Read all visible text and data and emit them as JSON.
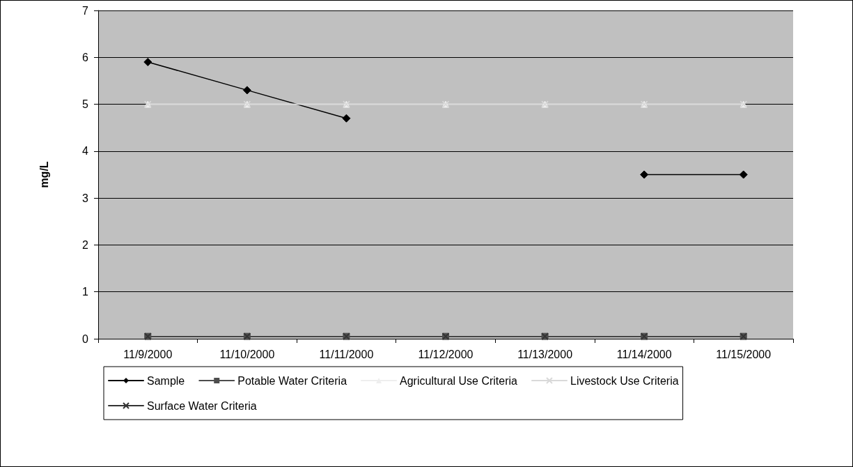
{
  "chart_data": {
    "type": "line",
    "ylabel": "mg/L",
    "categories": [
      "11/9/2000",
      "11/10/2000",
      "11/11/2000",
      "11/12/2000",
      "11/13/2000",
      "11/14/2000",
      "11/15/2000"
    ],
    "series": [
      {
        "name": "Sample",
        "color": "#000000",
        "marker": "diamond",
        "values": [
          5.9,
          5.3,
          4.7,
          null,
          null,
          3.5,
          3.5
        ]
      },
      {
        "name": "Potable Water Criteria",
        "color": "#4d4d4d",
        "marker": "square",
        "values": [
          0.05,
          0.05,
          0.05,
          0.05,
          0.05,
          0.05,
          0.05
        ]
      },
      {
        "name": "Agricultural Use Criteria",
        "color": "#eeeeee",
        "marker": "triangle",
        "values": [
          5,
          5,
          5,
          5,
          5,
          5,
          5
        ]
      },
      {
        "name": "Livestock Use Criteria",
        "color": "#d9d9d9",
        "marker": "cross",
        "values": [
          5,
          5,
          5,
          5,
          5,
          5,
          5
        ]
      },
      {
        "name": "Surface Water Criteria",
        "color": "#333333",
        "marker": "cross",
        "values": [
          0.05,
          0.05,
          0.05,
          0.05,
          0.05,
          0.05,
          0.05
        ]
      }
    ],
    "ylim": [
      0,
      7
    ],
    "yticks": [
      0,
      1,
      2,
      3,
      4,
      5,
      6,
      7
    ],
    "grid": "y",
    "legend": "bottom",
    "line_style": "solid"
  }
}
